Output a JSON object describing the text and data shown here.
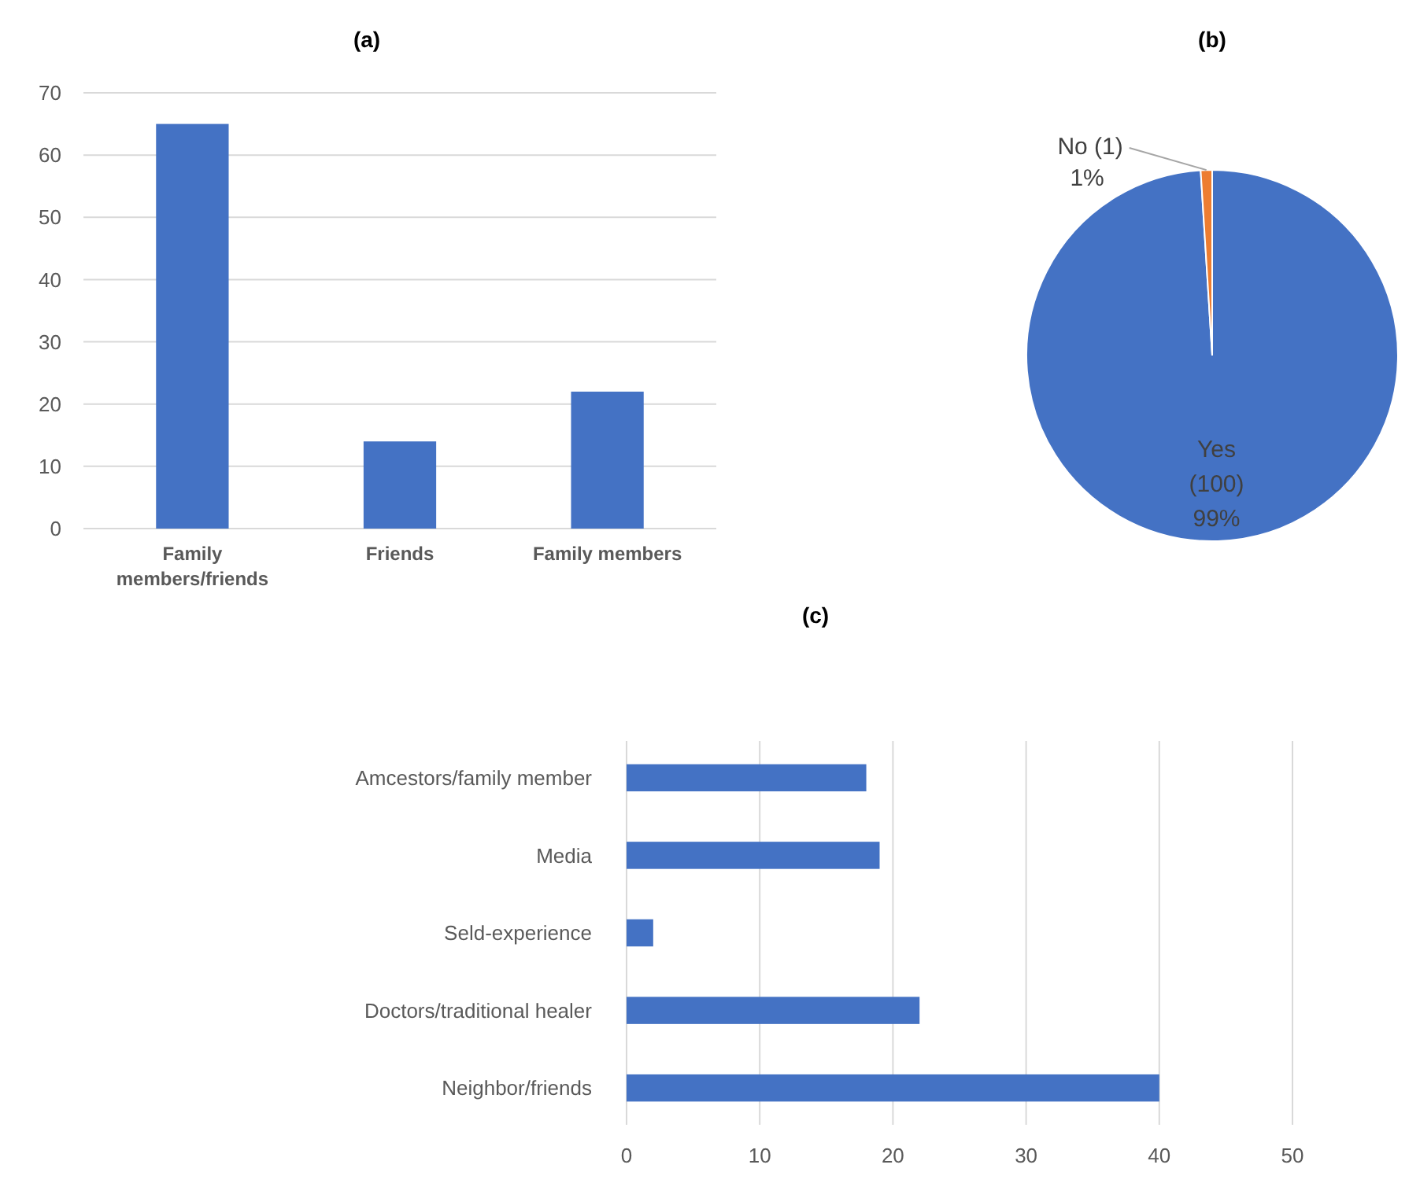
{
  "chart_data": [
    {
      "type": "bar",
      "title": "(a)",
      "categories": [
        "Family members/friends",
        "Friends",
        "Family members"
      ],
      "values": [
        65,
        14,
        22
      ],
      "color": "#4472c4",
      "ylim": [
        0,
        70
      ],
      "yticks": [
        0,
        10,
        20,
        30,
        40,
        50,
        60,
        70
      ],
      "grid": "y"
    },
    {
      "type": "pie",
      "title": "(b)",
      "categories": [
        "Yes",
        "No"
      ],
      "values": [
        100,
        1
      ],
      "colors": [
        "#4472c4",
        "#ed7d31"
      ],
      "value_labels": [
        "(100) 99%",
        "(1) 1%"
      ]
    },
    {
      "type": "bar",
      "title": "(c)",
      "orientation": "horizontal",
      "categories": [
        "Amcestors/family member",
        "Media",
        "Seld-experience",
        "Doctors/traditional healer",
        "Neighbor/friends"
      ],
      "values": [
        18,
        19,
        2,
        22,
        40
      ],
      "color": "#4472c4",
      "xlim": [
        0,
        50
      ],
      "xticks": [
        0,
        10,
        20,
        30,
        40,
        50
      ],
      "grid": "x"
    }
  ]
}
